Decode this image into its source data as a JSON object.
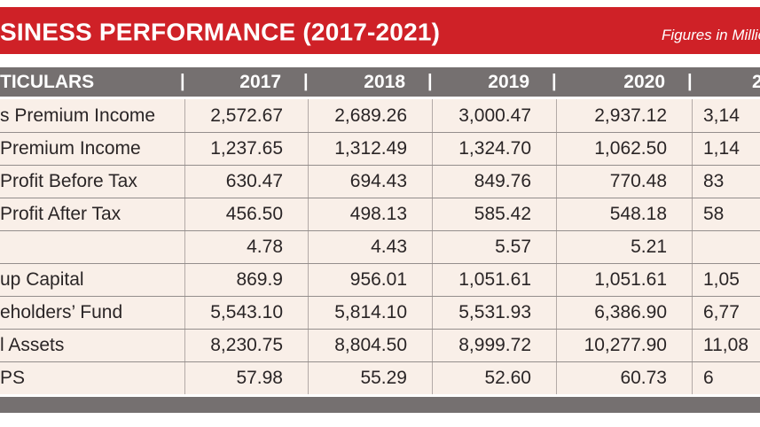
{
  "banner": {
    "title": "SINESS PERFORMANCE (2017-2021)",
    "note": "Figures in Millio"
  },
  "table": {
    "header": {
      "particulars": "TICULARS",
      "separator": "|",
      "years": [
        "2017",
        "2018",
        "2019",
        "2020",
        "2"
      ]
    }
  },
  "chart_data": {
    "type": "table",
    "title": "SINESS PERFORMANCE (2017-2021)",
    "note": "Figures in Millio",
    "columns": [
      "TICULARS",
      "2017",
      "2018",
      "2019",
      "2020",
      "2"
    ],
    "rows": [
      {
        "label": "s Premium Income",
        "values": [
          "2,572.67",
          "2,689.26",
          "3,000.47",
          "2,937.12",
          "3,14"
        ]
      },
      {
        "label": "Premium Income",
        "values": [
          "1,237.65",
          "1,312.49",
          "1,324.70",
          "1,062.50",
          "1,14"
        ]
      },
      {
        "label": "Profit Before Tax",
        "values": [
          "630.47",
          "694.43",
          "849.76",
          "770.48",
          "83"
        ]
      },
      {
        "label": "Profit After Tax",
        "values": [
          "456.50",
          "498.13",
          "585.42",
          "548.18",
          "58"
        ]
      },
      {
        "label": "",
        "values": [
          "4.78",
          "4.43",
          "5.57",
          "5.21",
          ""
        ]
      },
      {
        "label": "up Capital",
        "values": [
          "869.9",
          "956.01",
          "1,051.61",
          "1,051.61",
          "1,05"
        ]
      },
      {
        "label": "eholders’ Fund",
        "values": [
          "5,543.10",
          "5,814.10",
          "5,531.93",
          "6,386.90",
          "6,77"
        ]
      },
      {
        "label": "l Assets",
        "values": [
          "8,230.75",
          "8,804.50",
          "8,999.72",
          "10,277.90",
          "11,08"
        ]
      },
      {
        "label": "PS",
        "values": [
          "57.98",
          "55.29",
          "52.60",
          "60.73",
          "6"
        ]
      }
    ]
  },
  "colors": {
    "banner_red": "#cf2127",
    "header_gray": "#757070",
    "row_cream": "#f9efe8",
    "row_line": "#948e8c",
    "column_line": "#b3aaa7",
    "text_dark": "#2a2526",
    "text_white": "#ffffff"
  }
}
